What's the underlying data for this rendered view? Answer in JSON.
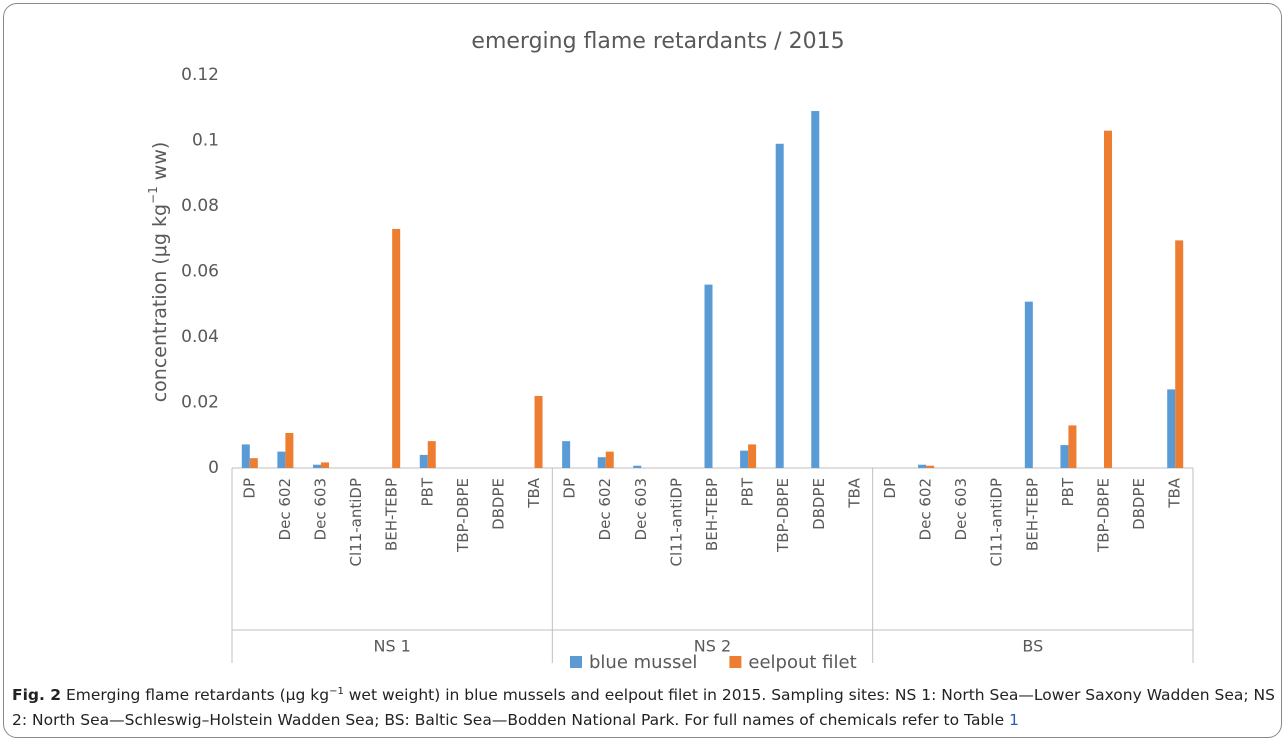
{
  "chart_data": {
    "type": "bar",
    "title": "emerging flame retardants / 2015",
    "y_label": [
      "concentration (μg kg",
      "−1",
      " ww)"
    ],
    "categories": [
      "DP",
      "Dec 602",
      "Dec 603",
      "Cl11-antiDP",
      "BEH-TEBP",
      "PBT",
      "TBP-DBPE",
      "DBDPE",
      "TBA",
      "DP",
      "Dec 602",
      "Dec 603",
      "Cl11-antiDP",
      "BEH-TEBP",
      "PBT",
      "TBP-DBPE",
      "DBDPE",
      "TBA",
      "DP",
      "Dec 602",
      "Dec 603",
      "Cl11-antiDP",
      "BEH-TEBP",
      "PBT",
      "TBP-DBPE",
      "DBDPE",
      "TBA"
    ],
    "group_labels": [
      "NS 1",
      "NS 2",
      "BS"
    ],
    "series": [
      {
        "name": "blue mussel",
        "color": "#5b9bd5",
        "values": [
          0.0072,
          0.005,
          0.001,
          0,
          0,
          0.004,
          0,
          0,
          0,
          0.0082,
          0.0033,
          0.0007,
          0,
          0.056,
          0.0053,
          0.099,
          0.109,
          0,
          0,
          0.001,
          0,
          0,
          0.0508,
          0.007,
          0,
          0,
          0.024
        ]
      },
      {
        "name": "eelpout filet",
        "color": "#ed7d31",
        "values": [
          0.003,
          0.0107,
          0.0017,
          0,
          0.073,
          0.0082,
          0,
          0,
          0.022,
          0,
          0.005,
          0,
          0,
          0,
          0.0072,
          0,
          0,
          0,
          0,
          0.0007,
          0,
          0,
          0,
          0.013,
          0.103,
          0,
          0.0695
        ]
      }
    ],
    "ylim": [
      0,
      0.12
    ],
    "yticks": [
      0,
      0.02,
      0.04,
      0.06,
      0.08,
      0.1,
      0.12
    ],
    "grid": false,
    "legend": "bottom"
  },
  "caption": {
    "label": "Fig. 2",
    "parts": [
      " Emerging flame retardants (μg kg",
      "−1",
      " wet weight) in blue mussels and eelpout filet in 2015. Sampling sites: NS 1: North Sea—Lower Saxony Wadden Sea; NS 2: North Sea—Schleswig–Holstein Wadden Sea; BS: Baltic Sea—Bodden National Park. For full names of chemicals refer to Table "
    ],
    "link": "1"
  }
}
